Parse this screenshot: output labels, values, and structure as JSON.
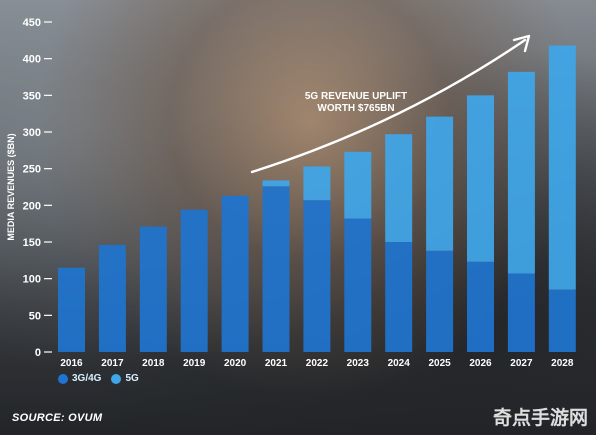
{
  "chart_data": {
    "type": "bar",
    "stacked": true,
    "categories": [
      "2016",
      "2017",
      "2018",
      "2019",
      "2020",
      "2021",
      "2022",
      "2023",
      "2024",
      "2025",
      "2026",
      "2027",
      "2028"
    ],
    "series": [
      {
        "name": "3G/4G",
        "color": "#1f74cf",
        "values": [
          115,
          146,
          171,
          194,
          213,
          226,
          207,
          182,
          150,
          138,
          123,
          107,
          85
        ]
      },
      {
        "name": "5G",
        "color": "#3fa6e8",
        "values": [
          0,
          0,
          0,
          0,
          0,
          8,
          46,
          91,
          147,
          183,
          227,
          275,
          333
        ]
      }
    ],
    "ylabel": "MEDIA REVENUES ($BN)",
    "ylim": [
      0,
      450
    ],
    "yticks": [
      0,
      50,
      100,
      150,
      200,
      250,
      300,
      350,
      400,
      450
    ],
    "grid": false,
    "legend": "bottom-left",
    "annotation": "5G REVENUE UPLIFT\nWORTH $765BN"
  },
  "source": "SOURCE: OVUM",
  "watermark": "奇点手游网"
}
